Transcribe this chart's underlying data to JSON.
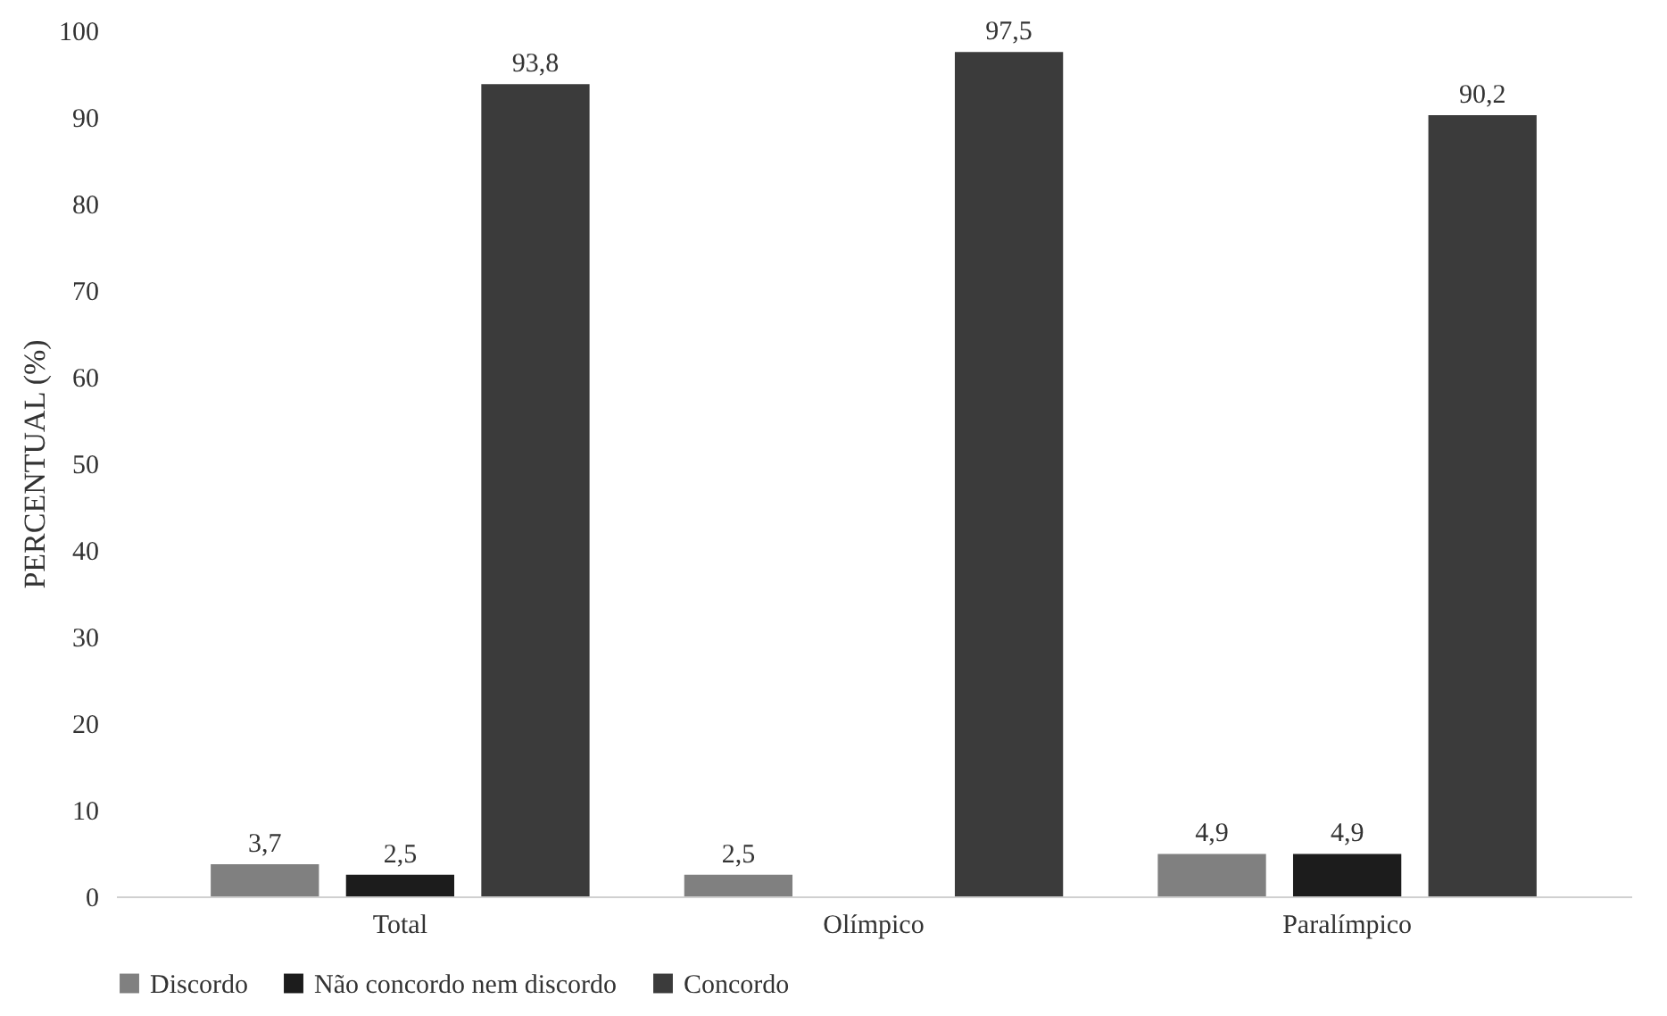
{
  "chart_data": {
    "type": "bar",
    "ylabel": "PERCENTUAL (%)",
    "categories": [
      "Total",
      "Olímpico",
      "Paralímpico"
    ],
    "series": [
      {
        "name": "Discordo",
        "color": "#808080",
        "values": [
          3.7,
          2.5,
          4.9
        ],
        "value_labels": [
          "3,7",
          "2,5",
          "4,9"
        ]
      },
      {
        "name": "Não concordo nem discordo",
        "color": "#1c1c1c",
        "values": [
          2.5,
          null,
          4.9
        ],
        "value_labels": [
          "2,5",
          null,
          "4,9"
        ]
      },
      {
        "name": "Concordo",
        "color": "#3b3b3b",
        "values": [
          93.8,
          97.5,
          90.2
        ],
        "value_labels": [
          "93,8",
          "97,5",
          "90,2"
        ]
      }
    ],
    "ylim": [
      0,
      100
    ],
    "yticks": [
      0,
      10,
      20,
      30,
      40,
      50,
      60,
      70,
      80,
      90,
      100
    ],
    "grid": false,
    "legend": "bottom"
  }
}
